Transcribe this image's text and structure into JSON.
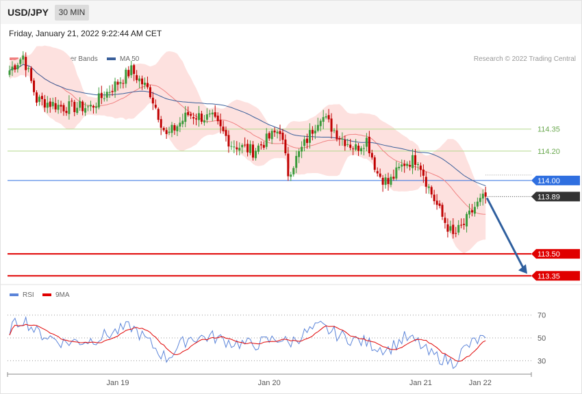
{
  "header": {
    "symbol": "USD/JPY",
    "timeframe": "30 MIN"
  },
  "datetime": "Friday, January 21, 2022 9:22:44 AM CET",
  "legend": {
    "ma20": {
      "label": "MA 20 + Bollinger Bands",
      "color": "#f08080"
    },
    "ma50": {
      "label": "MA 50",
      "color": "#3a5f9a"
    }
  },
  "credit": "Research © 2022 Trading Central",
  "rsi_legend": {
    "rsi": {
      "label": "RSI",
      "color": "#5b84d9"
    },
    "ma9": {
      "label": "9MA",
      "color": "#e00000"
    }
  },
  "chart_data": {
    "type": "candlestick",
    "ylim": [
      113.3,
      114.95
    ],
    "x_ticks": [
      {
        "label": "Jan 19",
        "index": 40
      },
      {
        "label": "Jan 20",
        "index": 96
      },
      {
        "label": "Jan 21",
        "index": 152
      },
      {
        "label": "Jan 22",
        "index": 174
      }
    ],
    "levels": [
      {
        "label": "114.35",
        "value": 114.35,
        "kind": "pivot",
        "color": "#b3d98c"
      },
      {
        "label": "114.20",
        "value": 114.2,
        "kind": "pivot",
        "color": "#b3d98c"
      },
      {
        "label": "114.00",
        "value": 114.0,
        "kind": "resistance",
        "color": "#2f6fe0"
      },
      {
        "label": "113.89",
        "value": 113.89,
        "kind": "last",
        "color": "#333333"
      },
      {
        "label": "113.50",
        "value": 113.5,
        "kind": "support",
        "color": "#e00000"
      },
      {
        "label": "113.35",
        "value": 113.35,
        "kind": "support",
        "color": "#e00000"
      }
    ],
    "arrow": {
      "from_value": 113.89,
      "to_value": 113.35,
      "color": "#2f5f9e"
    },
    "anchors": [
      {
        "i": 0,
        "c": 114.75
      },
      {
        "i": 5,
        "c": 114.85
      },
      {
        "i": 10,
        "c": 114.55
      },
      {
        "i": 20,
        "c": 114.5
      },
      {
        "i": 30,
        "c": 114.5
      },
      {
        "i": 45,
        "c": 114.75
      },
      {
        "i": 52,
        "c": 114.6
      },
      {
        "i": 58,
        "c": 114.3
      },
      {
        "i": 66,
        "c": 114.45
      },
      {
        "i": 75,
        "c": 114.42
      },
      {
        "i": 82,
        "c": 114.25
      },
      {
        "i": 90,
        "c": 114.2
      },
      {
        "i": 100,
        "c": 114.35
      },
      {
        "i": 103,
        "c": 114.05
      },
      {
        "i": 110,
        "c": 114.28
      },
      {
        "i": 115,
        "c": 114.45
      },
      {
        "i": 122,
        "c": 114.3
      },
      {
        "i": 128,
        "c": 114.22
      },
      {
        "i": 132,
        "c": 114.28
      },
      {
        "i": 136,
        "c": 114.05
      },
      {
        "i": 140,
        "c": 113.98
      },
      {
        "i": 146,
        "c": 114.12
      },
      {
        "i": 151,
        "c": 114.15
      },
      {
        "i": 155,
        "c": 113.95
      },
      {
        "i": 160,
        "c": 113.75
      },
      {
        "i": 164,
        "c": 113.62
      },
      {
        "i": 168,
        "c": 113.7
      },
      {
        "i": 172,
        "c": 113.82
      },
      {
        "i": 176,
        "c": 113.89
      }
    ],
    "rsi": {
      "ylim": [
        20,
        80
      ],
      "levels": [
        {
          "label": "70",
          "value": 70
        },
        {
          "label": "50",
          "value": 50
        },
        {
          "label": "30",
          "value": 30
        }
      ],
      "anchors": [
        {
          "i": 0,
          "v": 58
        },
        {
          "i": 5,
          "v": 67
        },
        {
          "i": 10,
          "v": 55
        },
        {
          "i": 20,
          "v": 46
        },
        {
          "i": 30,
          "v": 48
        },
        {
          "i": 45,
          "v": 60
        },
        {
          "i": 52,
          "v": 45
        },
        {
          "i": 58,
          "v": 32
        },
        {
          "i": 66,
          "v": 50
        },
        {
          "i": 75,
          "v": 51
        },
        {
          "i": 82,
          "v": 46
        },
        {
          "i": 90,
          "v": 44
        },
        {
          "i": 100,
          "v": 50
        },
        {
          "i": 103,
          "v": 45
        },
        {
          "i": 110,
          "v": 55
        },
        {
          "i": 115,
          "v": 60
        },
        {
          "i": 122,
          "v": 52
        },
        {
          "i": 128,
          "v": 48
        },
        {
          "i": 132,
          "v": 46
        },
        {
          "i": 136,
          "v": 42
        },
        {
          "i": 140,
          "v": 40
        },
        {
          "i": 146,
          "v": 50
        },
        {
          "i": 151,
          "v": 46
        },
        {
          "i": 155,
          "v": 36
        },
        {
          "i": 160,
          "v": 32
        },
        {
          "i": 164,
          "v": 28
        },
        {
          "i": 168,
          "v": 40
        },
        {
          "i": 172,
          "v": 47
        },
        {
          "i": 176,
          "v": 50
        }
      ]
    }
  }
}
